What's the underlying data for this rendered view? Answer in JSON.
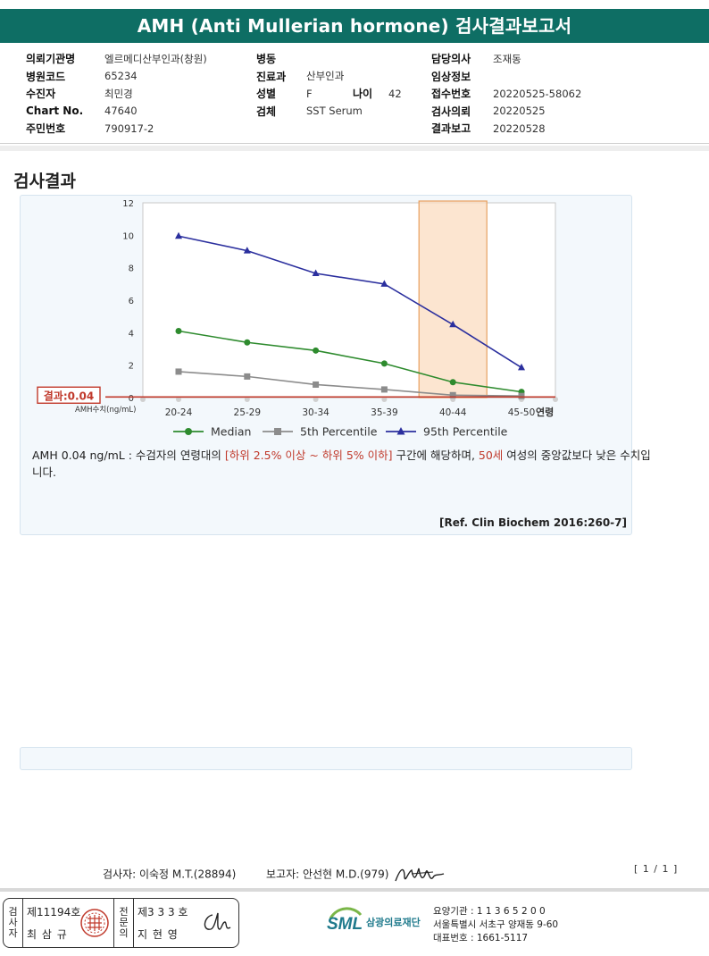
{
  "header": {
    "title": "AMH (Anti Mullerian hormone) 검사결과보고서"
  },
  "info": {
    "col1": [
      {
        "label": "의뢰기관명",
        "value": "엘르메디산부인과(창원)"
      },
      {
        "label": "병원코드",
        "value": "65234"
      },
      {
        "label": "수진자",
        "value": "최민경"
      },
      {
        "label": "Chart No.",
        "value": "47640"
      },
      {
        "label": "주민번호",
        "value": "790917-2"
      }
    ],
    "col2": [
      {
        "label": "병동",
        "value": ""
      },
      {
        "label": "진료과",
        "value": "산부인과"
      },
      {
        "label": "성별",
        "value": "F"
      },
      {
        "label": "검체",
        "value": "SST Serum"
      }
    ],
    "age": {
      "label": "나이",
      "value": "42"
    },
    "col3": [
      {
        "label": "담당의사",
        "value": "조재동"
      },
      {
        "label": "임상정보",
        "value": ""
      },
      {
        "label": "접수번호",
        "value": "20220525-58062"
      },
      {
        "label": "검사의뢰",
        "value": "20220525"
      },
      {
        "label": "결과보고",
        "value": "20220528"
      }
    ]
  },
  "section_title": "검사결과",
  "chart_data": {
    "type": "line",
    "categories": [
      "20-24",
      "25-29",
      "30-34",
      "35-39",
      "40-44",
      "45-50"
    ],
    "series": [
      {
        "name": "Median",
        "values": [
          4.1,
          3.4,
          2.9,
          2.1,
          0.95,
          0.35
        ],
        "color": "#2e8b2e",
        "marker": "circle"
      },
      {
        "name": "5th Percentile",
        "values": [
          1.6,
          1.3,
          0.8,
          0.5,
          0.15,
          0.1
        ],
        "color": "#8c8c8c",
        "marker": "square"
      },
      {
        "name": "95th Percentile",
        "values": [
          9.95,
          9.05,
          7.65,
          7.0,
          4.5,
          1.85
        ],
        "color": "#2b2f9e",
        "marker": "triangle"
      }
    ],
    "ylim": [
      0,
      12
    ],
    "yticks": [
      "0",
      "2",
      "4",
      "6",
      "8",
      "10",
      "12"
    ],
    "ylabel": "AMH수치(ng/mL)",
    "xlabel": "연령",
    "highlight_category": "40-44",
    "result_value": 0.04,
    "result_label": "결과:0.04",
    "grid": false,
    "legend_position": "bottom"
  },
  "note": {
    "part1": "AMH  0.04 ng/mL : 수검자의 연령대의 ",
    "red1": "[하위 2.5% 이상 ~ 하위 5% 이하]",
    "part2": " 구간에 해당하며, ",
    "red2": "50세",
    "part3": " 여성의 중앙값보다 낮은 수치입니다."
  },
  "reference": "[Ref. Clin Biochem 2016:260-7]",
  "signers": {
    "tester": "검사자: 이숙정 M.T.(28894)",
    "reporter": "보고자: 안선현 M.D.(979)"
  },
  "page": "[ 1 / 1 ]",
  "stamp": {
    "vertical1": [
      "검",
      "사",
      "자"
    ],
    "license1": "제11194호",
    "name1": "최 삼 규",
    "vertical2": [
      "전",
      "문",
      "의"
    ],
    "license2": "제3 3 3 호",
    "name2": "지 현 영"
  },
  "footer": {
    "logo_text": "SML",
    "org_name": "삼광의료재단",
    "line1": "요양기관 : 1 1 3 6 5 2 0 0",
    "line2": "서울특별시 서초구 양재동 9-60",
    "line3": "대표번호 : 1661-5117"
  }
}
